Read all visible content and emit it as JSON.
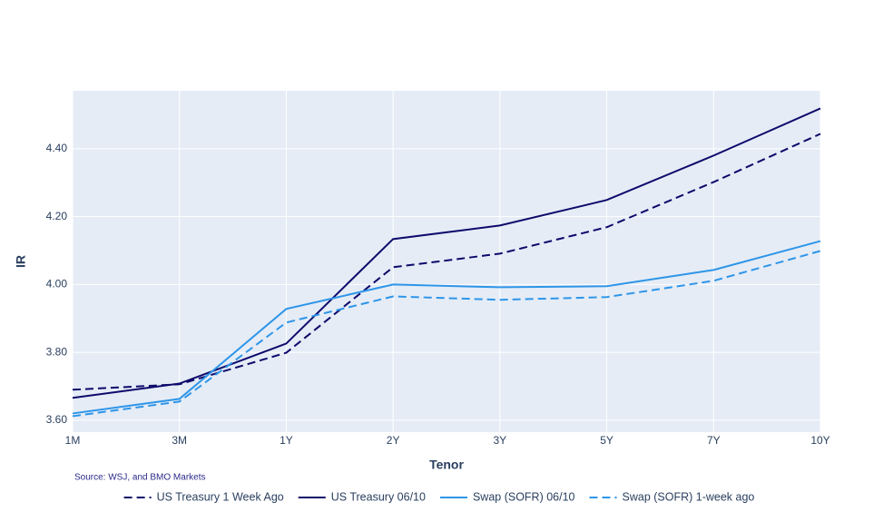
{
  "chart_data": {
    "type": "line",
    "x_label": "Tenor",
    "y_label": "IR",
    "annotation": "Source: WSJ, and BMO Markets",
    "categories": [
      "1M",
      "3M",
      "1Y",
      "2Y",
      "3Y",
      "5Y",
      "7Y",
      "10Y"
    ],
    "ylim": [
      3.565,
      4.571
    ],
    "yticks": [
      {
        "value": 3.6,
        "label": "3.60"
      },
      {
        "value": 3.8,
        "label": "3.80"
      },
      {
        "value": 4.0,
        "label": "4.00"
      },
      {
        "value": 4.2,
        "label": "4.20"
      },
      {
        "value": 4.4,
        "label": "4.40"
      }
    ],
    "grid": true,
    "legend": "bottom",
    "series": [
      {
        "name": "US Treasury 1 Week Ago",
        "color": "#0d0a6b",
        "dash": "dash",
        "values": [
          3.69,
          3.706,
          3.799,
          4.051,
          4.091,
          4.169,
          4.302,
          4.444
        ]
      },
      {
        "name": "US Treasury 06/10",
        "color": "#0d0a6b",
        "dash": "solid",
        "values": [
          3.666,
          3.708,
          3.826,
          4.134,
          4.174,
          4.249,
          4.38,
          4.519
        ]
      },
      {
        "name": "Swap (SOFR) 06/10",
        "color": "#2e95e8",
        "dash": "solid",
        "values": [
          3.62,
          3.663,
          3.928,
          4.0,
          3.992,
          3.995,
          4.043,
          4.128
        ]
      },
      {
        "name": "Swap (SOFR) 1-week ago",
        "color": "#2e95e8",
        "dash": "dash",
        "values": [
          3.612,
          3.655,
          3.888,
          3.965,
          3.955,
          3.963,
          4.011,
          4.099
        ]
      }
    ]
  }
}
